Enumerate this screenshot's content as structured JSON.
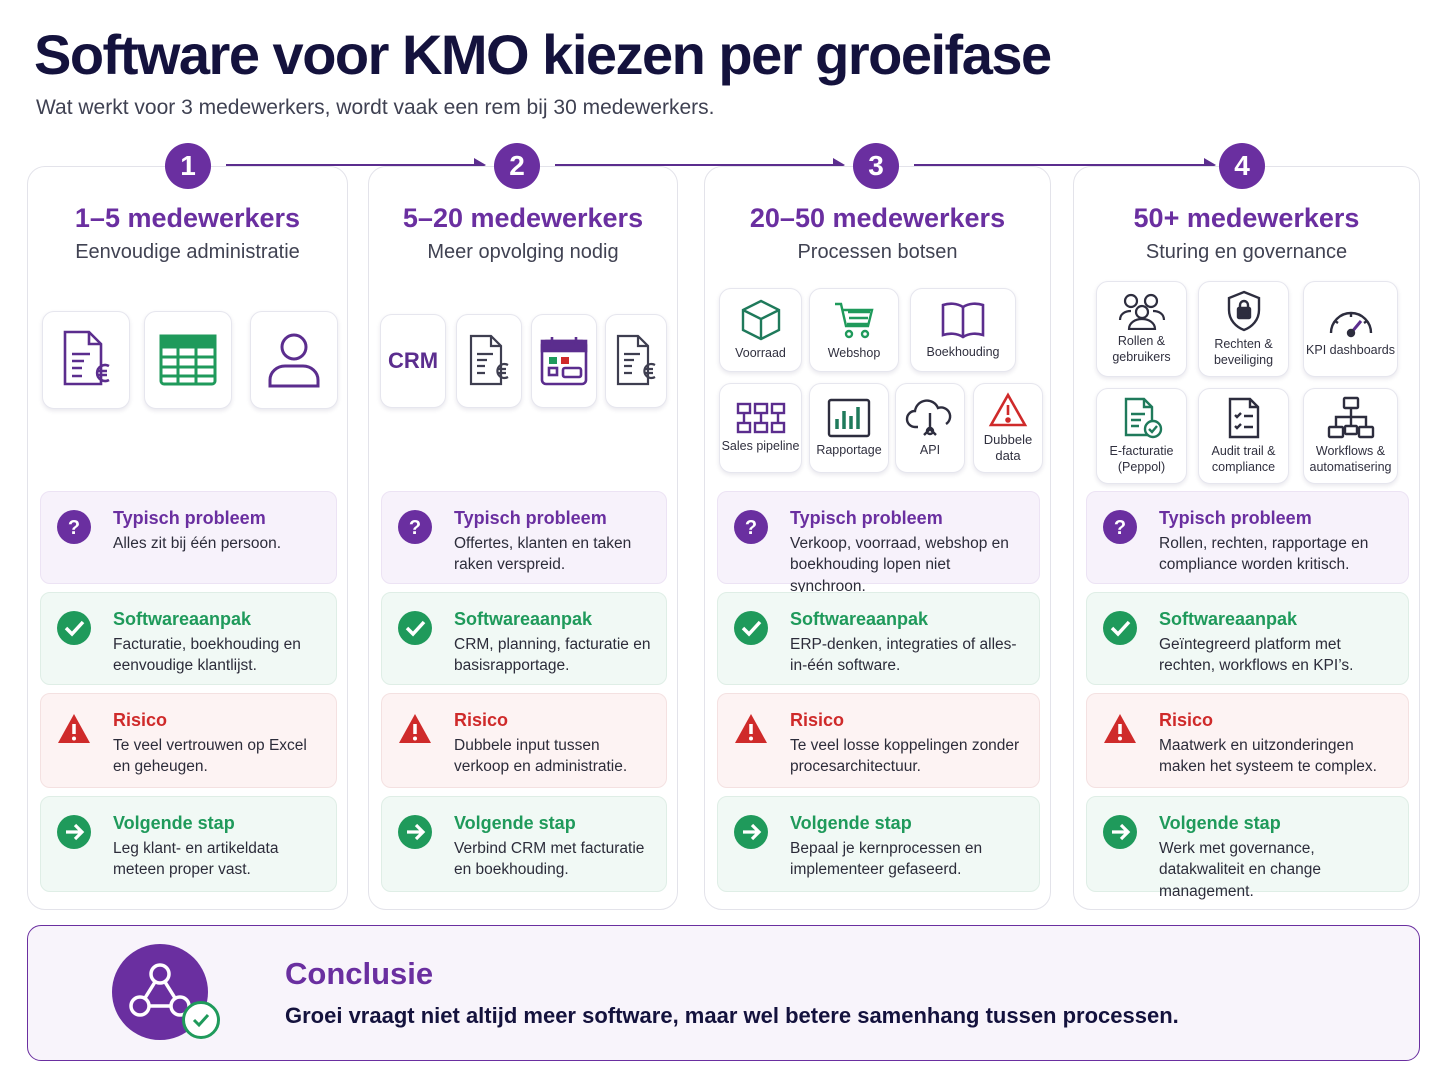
{
  "header": {
    "title": "Software voor KMO kiezen per groeifase",
    "subtitle": "Wat werkt voor 3 medewerkers, wordt vaak een rem bij 30 medewerkers."
  },
  "colors": {
    "purple": "#6a2fa0",
    "green": "#1f9a5b",
    "red": "#cf2a2a"
  },
  "phases": [
    {
      "number": "1",
      "title": "1–5 medewerkers",
      "subtitle": "Eenvoudige administratie",
      "icons": [
        "invoice-euro-icon",
        "spreadsheet-icon",
        "user-icon"
      ],
      "problem": {
        "title": "Typisch probleem",
        "text": "Alles zit bij één persoon."
      },
      "approach": {
        "title": "Softwareaanpak",
        "text": "Facturatie, boekhouding en eenvoudige klantlijst."
      },
      "risk": {
        "title": "Risico",
        "text": "Te veel vertrouwen op Excel en geheugen."
      },
      "next": {
        "title": "Volgende stap",
        "text": "Leg klant- en artikeldata meteen proper vast."
      }
    },
    {
      "number": "2",
      "title": "5–20 medewerkers",
      "subtitle": "Meer opvolging nodig",
      "crm_label": "CRM",
      "icons": [
        "crm-icon",
        "invoice-euro-icon",
        "calendar-icon",
        "invoice-euro-icon"
      ],
      "problem": {
        "title": "Typisch probleem",
        "text": "Offertes, klanten en taken raken verspreid."
      },
      "approach": {
        "title": "Softwareaanpak",
        "text": "CRM, planning, facturatie en basisrapportage."
      },
      "risk": {
        "title": "Risico",
        "text": "Dubbele input tussen verkoop en administratie."
      },
      "next": {
        "title": "Volgende stap",
        "text": "Verbind CRM met facturatie en boekhouding."
      }
    },
    {
      "number": "3",
      "title": "20–50 medewerkers",
      "subtitle": "Processen botsen",
      "tiles": [
        "Voorraad",
        "Webshop",
        "Boekhouding",
        "Sales pipeline",
        "Rapportage",
        "API",
        "Dubbele data"
      ],
      "problem": {
        "title": "Typisch probleem",
        "text": "Verkoop, voorraad, webshop en boekhouding lopen niet synchroon."
      },
      "approach": {
        "title": "Softwareaanpak",
        "text": "ERP-denken, integraties of alles-in-één software."
      },
      "risk": {
        "title": "Risico",
        "text": "Te veel losse koppelingen zonder procesarchitectuur."
      },
      "next": {
        "title": "Volgende stap",
        "text": "Bepaal je kernprocessen en implementeer gefaseerd."
      }
    },
    {
      "number": "4",
      "title": "50+ medewerkers",
      "subtitle": "Sturing en governance",
      "tiles": [
        "Rollen & gebruikers",
        "Rechten & beveiliging",
        "KPI dashboards",
        "E-facturatie (Peppol)",
        "Audit trail & compliance",
        "Workflows & automatisering"
      ],
      "problem": {
        "title": "Typisch probleem",
        "text": "Rollen, rechten, rapportage en compliance worden kritisch."
      },
      "approach": {
        "title": "Softwareaanpak",
        "text": "Geïntegreerd platform met rechten, workflows en KPI’s."
      },
      "risk": {
        "title": "Risico",
        "text": "Maatwerk en uitzonderingen maken het systeem te complex."
      },
      "next": {
        "title": "Volgende stap",
        "text": "Werk met governance, datakwaliteit en change management."
      }
    }
  ],
  "conclusion": {
    "title": "Conclusie",
    "text": "Groei vraagt niet altijd meer software, maar wel betere samenhang tussen processen."
  }
}
